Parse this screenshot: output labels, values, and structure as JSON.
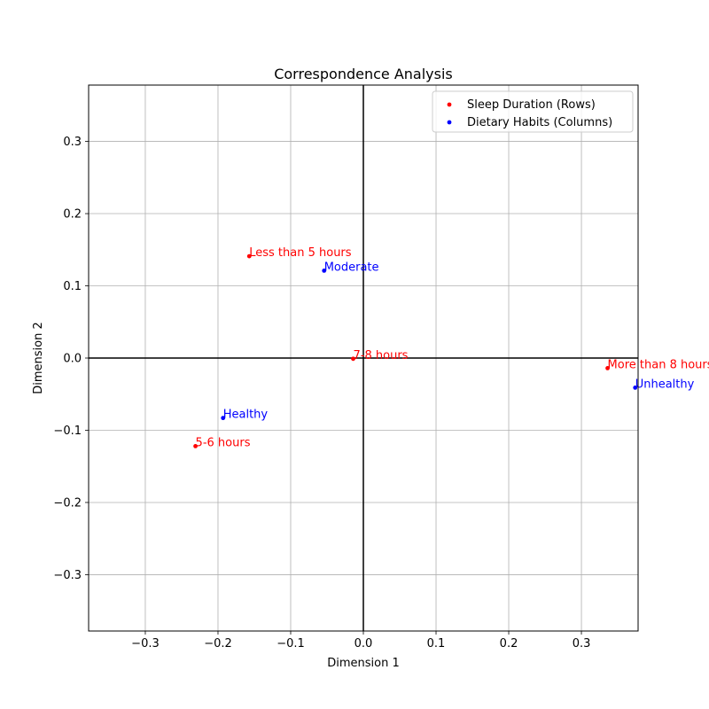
{
  "chart_data": {
    "type": "scatter",
    "title": "Correspondence Analysis",
    "xlabel": "Dimension 1",
    "ylabel": "Dimension 2",
    "xlim": [
      -0.378,
      0.378
    ],
    "ylim": [
      -0.378,
      0.378
    ],
    "xticks": [
      -0.3,
      -0.2,
      -0.1,
      0.0,
      0.1,
      0.2,
      0.3
    ],
    "yticks": [
      -0.3,
      -0.2,
      -0.1,
      0.0,
      0.1,
      0.2,
      0.3
    ],
    "xtick_labels": [
      "−0.3",
      "−0.2",
      "−0.1",
      "0.0",
      "0.1",
      "0.2",
      "0.3"
    ],
    "ytick_labels": [
      "−0.3",
      "−0.2",
      "−0.1",
      "0.0",
      "0.1",
      "0.2",
      "0.3"
    ],
    "grid": true,
    "legend_position": "top-right",
    "series": [
      {
        "name": "Sleep Duration (Rows)",
        "color": "#ff0000",
        "points": [
          {
            "label": "Less than 5 hours",
            "x": -0.157,
            "y": 0.141
          },
          {
            "label": "7-8 hours",
            "x": -0.014,
            "y": -0.001
          },
          {
            "label": "More than 8 hours",
            "x": 0.336,
            "y": -0.014
          },
          {
            "label": "5-6 hours",
            "x": -0.231,
            "y": -0.122
          }
        ]
      },
      {
        "name": "Dietary Habits (Columns)",
        "color": "#0000ff",
        "points": [
          {
            "label": "Moderate",
            "x": -0.054,
            "y": 0.121
          },
          {
            "label": "Healthy",
            "x": -0.193,
            "y": -0.083
          },
          {
            "label": "Unhealthy",
            "x": 0.374,
            "y": -0.041
          }
        ]
      }
    ]
  }
}
